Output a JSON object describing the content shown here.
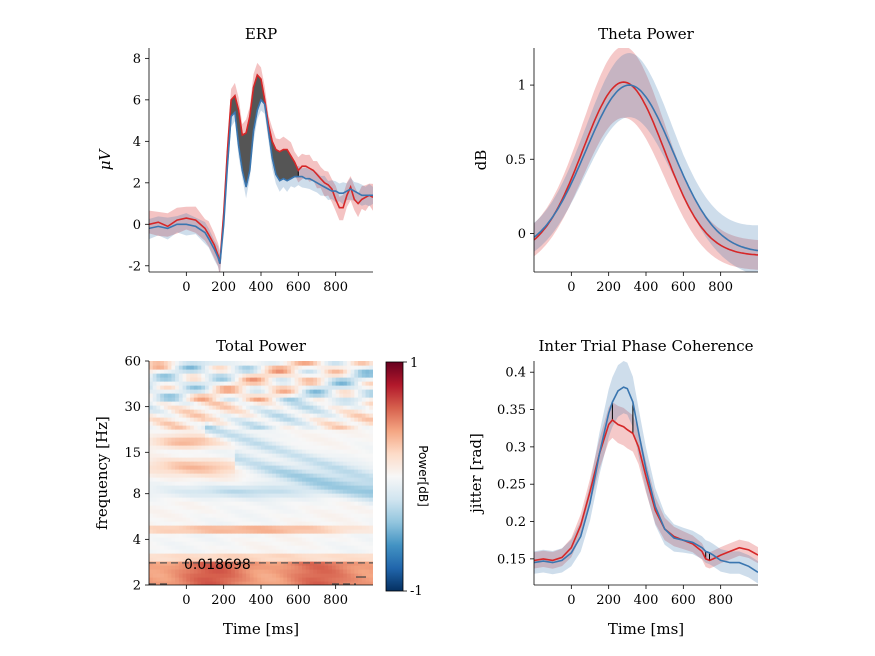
{
  "chart_data": [
    {
      "type": "line",
      "title": "ERP",
      "xlabel": "",
      "ylabel": "μV",
      "xlim": [
        -200,
        1000
      ],
      "ylim": [
        -2.3,
        8.5
      ],
      "xticks": [
        "0",
        "200",
        "400",
        "600",
        "800"
      ],
      "yticks": [
        "-2",
        "0",
        "2",
        "4",
        "6",
        "8"
      ],
      "x": [
        -200,
        -150,
        -100,
        -50,
        0,
        50,
        100,
        120,
        150,
        170,
        180,
        200,
        220,
        240,
        260,
        280,
        300,
        320,
        340,
        360,
        380,
        400,
        420,
        440,
        460,
        480,
        500,
        520,
        540,
        560,
        580,
        600,
        620,
        640,
        660,
        680,
        700,
        720,
        740,
        760,
        780,
        800,
        820,
        840,
        860,
        880,
        900,
        920,
        940,
        960,
        980,
        1000
      ],
      "series": [
        {
          "color": "#d62728",
          "values": [
            0.0,
            0.1,
            -0.1,
            0.2,
            0.3,
            0.2,
            -0.2,
            -0.5,
            -1.0,
            -1.5,
            -1.9,
            0.5,
            3.5,
            6.0,
            6.2,
            5.5,
            4.3,
            4.4,
            5.2,
            6.6,
            7.2,
            7.0,
            6.0,
            4.8,
            4.0,
            3.6,
            3.5,
            3.6,
            3.6,
            3.3,
            3.0,
            2.6,
            2.8,
            2.8,
            2.7,
            2.6,
            2.4,
            2.2,
            2.0,
            1.9,
            1.7,
            1.2,
            0.8,
            0.8,
            1.4,
            1.8,
            1.2,
            1.0,
            1.2,
            1.3,
            1.4,
            1.3
          ],
          "band": 0.55
        },
        {
          "color": "#3a76b0",
          "values": [
            -0.2,
            -0.1,
            -0.2,
            0.0,
            0.0,
            -0.1,
            -0.4,
            -0.7,
            -1.2,
            -1.6,
            -1.9,
            0.0,
            2.8,
            5.2,
            5.4,
            3.8,
            2.6,
            1.8,
            2.6,
            4.5,
            5.5,
            6.0,
            5.8,
            4.5,
            3.2,
            2.4,
            2.1,
            2.2,
            2.1,
            2.2,
            2.3,
            2.3,
            2.3,
            2.2,
            2.2,
            2.1,
            2.0,
            1.9,
            1.8,
            1.7,
            1.6,
            1.6,
            1.5,
            1.5,
            1.6,
            1.7,
            1.6,
            1.5,
            1.4,
            1.4,
            1.4,
            1.4
          ],
          "band": 0.45
        }
      ],
      "shade": [
        220,
        600
      ]
    },
    {
      "type": "line",
      "title": "Theta Power",
      "xlabel": "",
      "ylabel": "dB",
      "xlim": [
        -200,
        1000
      ],
      "ylim": [
        -0.26,
        1.25
      ],
      "xticks": [
        "0",
        "200",
        "400",
        "600",
        "800"
      ],
      "yticks": [
        "0",
        "0.5",
        "1"
      ],
      "series": [
        {
          "color": "#d62728",
          "peak": 1.02,
          "center": 280,
          "width": 310,
          "base": -0.15,
          "band": 0.2
        },
        {
          "color": "#3a76b0",
          "peak": 1.0,
          "center": 310,
          "width": 330,
          "base": -0.13,
          "band": 0.18
        }
      ]
    },
    {
      "type": "heatmap",
      "title": "Total Power",
      "xlabel": "Time [ms]",
      "ylabel": "frequency [Hz]",
      "xlim": [
        -200,
        1000
      ],
      "xticks": [
        "0",
        "200",
        "400",
        "600",
        "800"
      ],
      "yticks": [
        "2",
        "4",
        "8",
        "15",
        "30",
        "60"
      ],
      "colorbar": {
        "label": "Power[dB]",
        "max_label": "1",
        "min_label": "-1",
        "range": [
          -1,
          1
        ],
        "colors": [
          "#053061",
          "#2166ac",
          "#4393c3",
          "#92c5de",
          "#d1e5f0",
          "#f7f7f7",
          "#fddbc7",
          "#f4a582",
          "#d6604d",
          "#b2182b",
          "#67001f"
        ]
      },
      "threshold": {
        "label": "0.018698",
        "freq": 2.8
      }
    },
    {
      "type": "line",
      "title": "Inter Trial Phase Coherence",
      "xlabel": "Time [ms]",
      "ylabel": "jitter [rad]",
      "xlim": [
        -200,
        1000
      ],
      "ylim": [
        0.115,
        0.415
      ],
      "xticks": [
        "0",
        "200",
        "400",
        "600",
        "800"
      ],
      "yticks": [
        "0.15",
        "0.2",
        "0.25",
        "0.3",
        "0.35",
        "0.4"
      ],
      "x": [
        -200,
        -150,
        -100,
        -50,
        0,
        50,
        100,
        150,
        200,
        220,
        250,
        280,
        300,
        330,
        360,
        400,
        450,
        500,
        550,
        600,
        650,
        700,
        720,
        740,
        760,
        800,
        850,
        900,
        950,
        1000
      ],
      "series": [
        {
          "color": "#d62728",
          "values": [
            0.148,
            0.15,
            0.148,
            0.152,
            0.165,
            0.195,
            0.24,
            0.29,
            0.33,
            0.336,
            0.33,
            0.327,
            0.323,
            0.318,
            0.3,
            0.26,
            0.215,
            0.19,
            0.18,
            0.175,
            0.17,
            0.16,
            0.15,
            0.148,
            0.15,
            0.155,
            0.16,
            0.165,
            0.162,
            0.155
          ],
          "band": 0.018
        },
        {
          "color": "#3a76b0",
          "values": [
            0.145,
            0.147,
            0.145,
            0.148,
            0.158,
            0.18,
            0.225,
            0.29,
            0.345,
            0.36,
            0.375,
            0.38,
            0.378,
            0.36,
            0.32,
            0.27,
            0.22,
            0.19,
            0.178,
            0.175,
            0.172,
            0.165,
            0.16,
            0.158,
            0.155,
            0.148,
            0.145,
            0.145,
            0.14,
            0.132
          ],
          "band": 0.025
        }
      ],
      "marks": [
        [
          220,
          330
        ],
        [
          720,
          740
        ]
      ]
    }
  ]
}
